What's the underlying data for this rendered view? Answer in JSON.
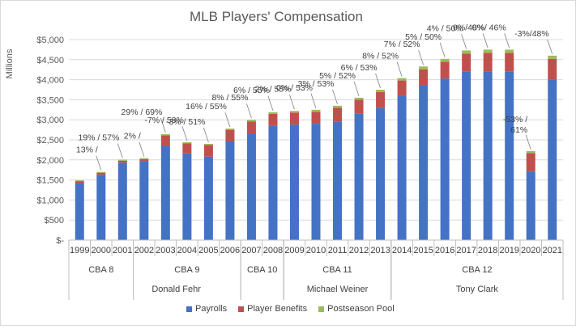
{
  "chart_data": {
    "type": "bar",
    "stacked": true,
    "title": "MLB Players' Compensation",
    "ylabel": "Millions",
    "ylim": [
      0,
      5000
    ],
    "y_ticks": [
      "$-",
      "$500",
      "$1,000",
      "$1,500",
      "$2,000",
      "$2,500",
      "$3,000",
      "$3,500",
      "$4,000",
      "$4,500",
      "$5,000"
    ],
    "grid": true,
    "categories": [
      "1999",
      "2000",
      "2001",
      "2002",
      "2003",
      "2004",
      "2005",
      "2006",
      "2007",
      "2008",
      "2009",
      "2010",
      "2011",
      "2012",
      "2013",
      "2014",
      "2015",
      "2016",
      "2017",
      "2018",
      "2019",
      "2020",
      "2021"
    ],
    "series": [
      {
        "name": "Payrolls",
        "color": "#4472c4",
        "values": [
          1420,
          1630,
          1930,
          1970,
          2350,
          2160,
          2080,
          2460,
          2660,
          2850,
          2880,
          2900,
          2950,
          3150,
          3300,
          3600,
          3870,
          4030,
          4200,
          4210,
          4200,
          1700,
          4000
        ]
      },
      {
        "name": "Player Benefits",
        "color": "#c0504d",
        "values": [
          50,
          50,
          50,
          50,
          260,
          250,
          290,
          290,
          300,
          300,
          300,
          300,
          350,
          350,
          390,
          380,
          390,
          420,
          450,
          460,
          470,
          470,
          520
        ]
      },
      {
        "name": "Postseason Pool",
        "color": "#9bbb59",
        "values": [
          20,
          20,
          25,
          25,
          30,
          30,
          30,
          30,
          40,
          40,
          40,
          50,
          50,
          50,
          60,
          60,
          70,
          70,
          80,
          80,
          80,
          50,
          80
        ]
      }
    ],
    "annotations": [
      {
        "year": "2000",
        "text": "13% /"
      },
      {
        "year": "2001",
        "text": "19% / 57%"
      },
      {
        "year": "2002",
        "text": "2% /"
      },
      {
        "year": "2003",
        "text": "29% / 69%"
      },
      {
        "year": "2004",
        "text": "-7% / 58%"
      },
      {
        "year": "2005",
        "text": "-3% / 51%"
      },
      {
        "year": "2006",
        "text": "16% / 55%"
      },
      {
        "year": "2007",
        "text": "8% / 55%"
      },
      {
        "year": "2008",
        "text": "6% / 55%"
      },
      {
        "year": "2009",
        "text": "2% / 55%"
      },
      {
        "year": "2010",
        "text": "0% / 53%"
      },
      {
        "year": "2011",
        "text": "3% / 53%"
      },
      {
        "year": "2012",
        "text": "5% / 52%"
      },
      {
        "year": "2013",
        "text": "6% / 53%"
      },
      {
        "year": "2014",
        "text": "8% / 52%"
      },
      {
        "year": "2015",
        "text": "7% / 52%"
      },
      {
        "year": "2016",
        "text": "5% / 50%"
      },
      {
        "year": "2017",
        "text": "4% / 50%"
      },
      {
        "year": "2018",
        "text": "0%/48%"
      },
      {
        "year": "2019",
        "text": "0%/ 46%"
      },
      {
        "year": "2020",
        "text": "-53% /\n61%"
      },
      {
        "year": "2021",
        "text": "-3%/48%"
      }
    ],
    "cba_groups": [
      {
        "label": "CBA 8",
        "start": "1999",
        "end": "2001"
      },
      {
        "label": "CBA 9",
        "start": "2002",
        "end": "2006"
      },
      {
        "label": "CBA 10",
        "start": "2007",
        "end": "2008"
      },
      {
        "label": "CBA 11",
        "start": "2009",
        "end": "2013"
      },
      {
        "label": "CBA 12",
        "start": "2014",
        "end": "2021"
      }
    ],
    "director_groups": [
      {
        "label": "Donald Fehr",
        "start": "1999",
        "end": "2008"
      },
      {
        "label": "Michael Weiner",
        "start": "2009",
        "end": "2013"
      },
      {
        "label": "Tony Clark",
        "start": "2014",
        "end": "2021"
      }
    ],
    "legend": {
      "position": "bottom",
      "items": [
        "Payrolls",
        "Player Benefits",
        "Postseason Pool"
      ]
    }
  }
}
